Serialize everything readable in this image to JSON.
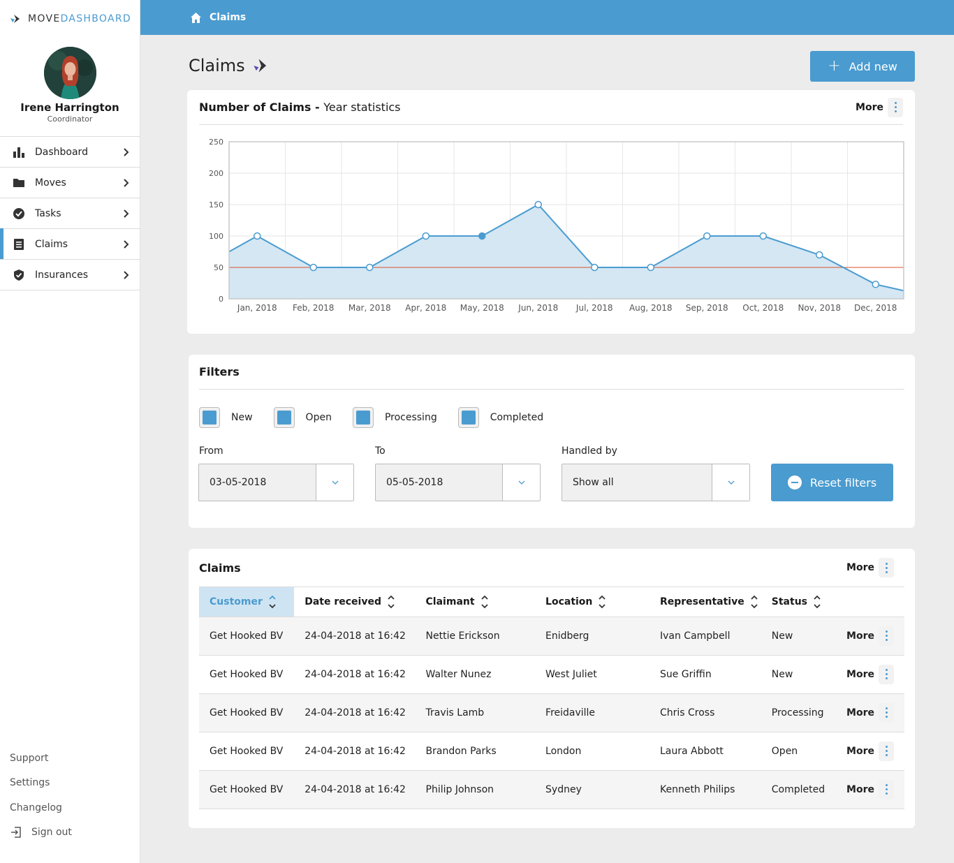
{
  "brand": {
    "part1": "MOVE",
    "part2": "DASHBOARD"
  },
  "user": {
    "name": "Irene Harrington",
    "role": "Coordinator"
  },
  "nav": [
    {
      "label": "Dashboard",
      "icon": "bar-chart-icon"
    },
    {
      "label": "Moves",
      "icon": "folder-icon"
    },
    {
      "label": "Tasks",
      "icon": "check-circle-icon"
    },
    {
      "label": "Claims",
      "icon": "list-icon",
      "active": true
    },
    {
      "label": "Insurances",
      "icon": "shield-check-icon"
    }
  ],
  "bottom_links": {
    "support": "Support",
    "settings": "Settings",
    "changelog": "Changelog",
    "signout": "Sign out"
  },
  "breadcrumb": "Claims",
  "page_title": "Claims",
  "add_button": "Add new",
  "chart_card": {
    "title": "Number of Claims -",
    "subtitle": "Year statistics",
    "more": "More"
  },
  "chart_data": {
    "type": "area",
    "categories": [
      "Jan, 2018",
      "Feb, 2018",
      "Mar, 2018",
      "Apr, 2018",
      "May, 2018",
      "Jun, 2018",
      "Jul, 2018",
      "Aug, 2018",
      "Sep, 2018",
      "Oct, 2018",
      "Nov, 2018",
      "Dec, 2018"
    ],
    "values": [
      100,
      50,
      50,
      100,
      100,
      150,
      50,
      50,
      100,
      100,
      70,
      23
    ],
    "start_value": 75,
    "end_value": 13,
    "reference_line": 50,
    "yticks": [
      0,
      50,
      100,
      150,
      200,
      250
    ],
    "ylim": [
      0,
      250
    ],
    "grid": true,
    "colors": {
      "line": "#4a9bd0",
      "fill": "#d4e7f3",
      "reference": "#d9502f"
    }
  },
  "filters": {
    "title": "Filters",
    "statuses": [
      "New",
      "Open",
      "Processing",
      "Completed"
    ],
    "from_label": "From",
    "from_value": "03-05-2018",
    "to_label": "To",
    "to_value": "05-05-2018",
    "handled_label": "Handled by",
    "handled_value": "Show all",
    "reset": "Reset filters"
  },
  "claims_table": {
    "title": "Claims",
    "more": "More",
    "headers": [
      "Customer",
      "Date received",
      "Claimant",
      "Location",
      "Representative",
      "Status"
    ],
    "rows": [
      [
        "Get Hooked BV",
        "24-04-2018 at 16:42",
        "Nettie Erickson",
        "Enidberg",
        "Ivan Campbell",
        "New"
      ],
      [
        "Get Hooked BV",
        "24-04-2018 at 16:42",
        "Walter Nunez",
        "West Juliet",
        "Sue Griffin",
        "New"
      ],
      [
        "Get Hooked BV",
        "24-04-2018 at 16:42",
        "Travis Lamb",
        "Freidaville",
        "Chris Cross",
        "Processing"
      ],
      [
        "Get Hooked BV",
        "24-04-2018 at 16:42",
        "Brandon Parks",
        "London",
        "Laura Abbott",
        "Open"
      ],
      [
        "Get Hooked BV",
        "24-04-2018 at 16:42",
        "Philip Johnson",
        "Sydney",
        "Kenneth Philips",
        "Completed"
      ]
    ],
    "row_action": "More"
  }
}
